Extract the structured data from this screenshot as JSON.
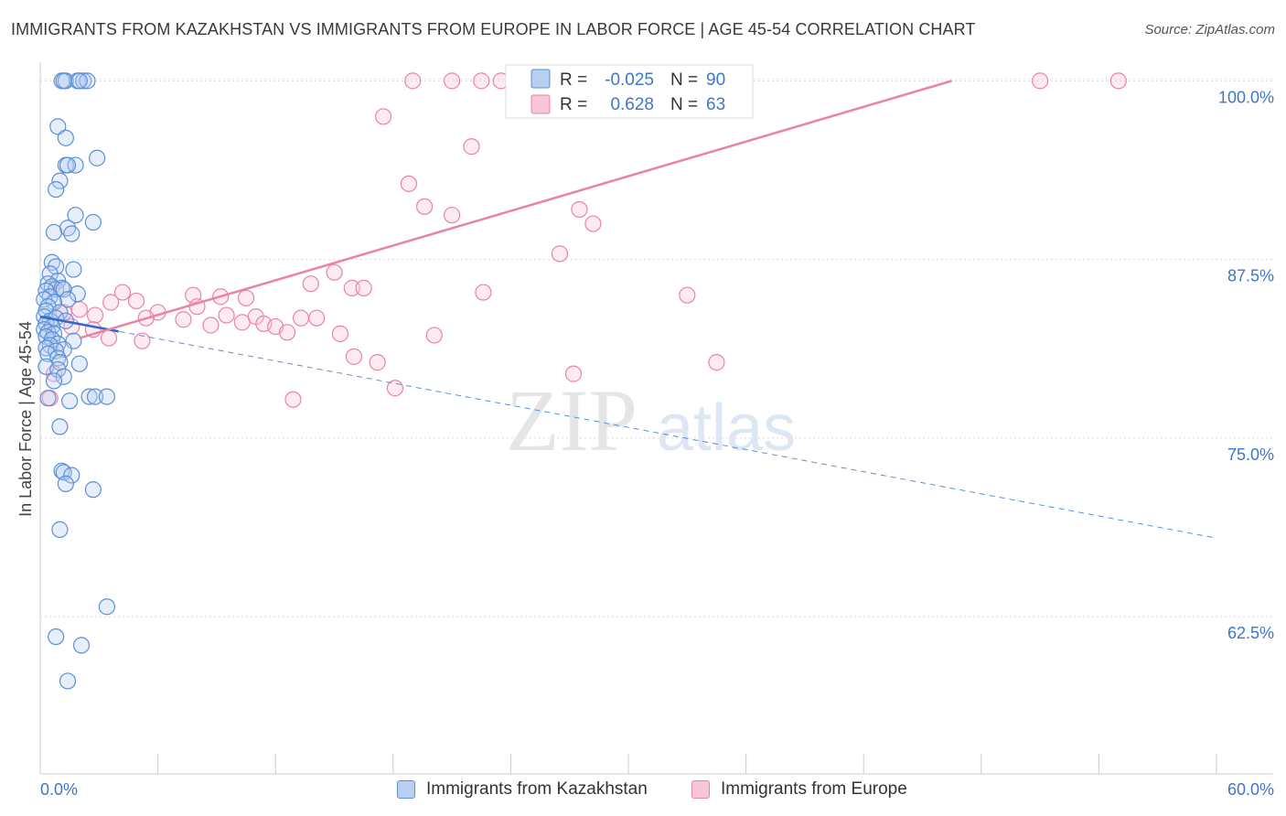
{
  "title": "IMMIGRANTS FROM KAZAKHSTAN VS IMMIGRANTS FROM EUROPE IN LABOR FORCE | AGE 45-54 CORRELATION CHART",
  "source": "Source: ZipAtlas.com",
  "watermark": {
    "zip": "ZIP",
    "atlas": "atlas"
  },
  "stats_legend": {
    "rows": [
      {
        "r_label": "R =",
        "r_value": "-0.025",
        "n_label": "N =",
        "n_value": "90"
      },
      {
        "r_label": "R =",
        "r_value": "0.628",
        "n_label": "N =",
        "n_value": "63"
      }
    ]
  },
  "chart_data": {
    "type": "scatter",
    "title": "IMMIGRANTS FROM KAZAKHSTAN VS IMMIGRANTS FROM EUROPE IN LABOR FORCE | AGE 45-54 CORRELATION CHART",
    "xlabel": "",
    "ylabel": "In Labor Force | Age 45-54",
    "xlim": [
      0,
      60
    ],
    "ylim": [
      51.5,
      100.6
    ],
    "x_tick_labels": [
      "0.0%",
      "60.0%"
    ],
    "y_ticks": [
      62.5,
      75.0,
      87.5,
      100.0
    ],
    "y_tick_labels": [
      "62.5%",
      "75.0%",
      "87.5%",
      "100.0%"
    ],
    "colors": {
      "blue": "#5b8fd6",
      "pink": "#e983a6",
      "axis_text": "#3f76c9"
    },
    "series": [
      {
        "name": "Immigrants from Kazakhstan",
        "color": "#5b8fd6",
        "R": -0.025,
        "N": 90,
        "trend": {
          "x": [
            0.0,
            60.0
          ],
          "y": [
            83.5,
            68.0
          ],
          "solid_to_x": 4.0
        },
        "points": [
          [
            1.1,
            100
          ],
          [
            1.3,
            100
          ],
          [
            1.9,
            100
          ],
          [
            2.2,
            100
          ],
          [
            2.4,
            100
          ],
          [
            2.0,
            100
          ],
          [
            1.2,
            100
          ],
          [
            0.9,
            96.8
          ],
          [
            1.3,
            96.0
          ],
          [
            2.9,
            94.6
          ],
          [
            1.3,
            94.1
          ],
          [
            1.8,
            94.1
          ],
          [
            1.4,
            94.1
          ],
          [
            1.0,
            93.0
          ],
          [
            0.8,
            92.4
          ],
          [
            1.8,
            90.6
          ],
          [
            2.7,
            90.1
          ],
          [
            1.4,
            89.7
          ],
          [
            0.7,
            89.4
          ],
          [
            1.6,
            89.3
          ],
          [
            0.6,
            87.3
          ],
          [
            0.8,
            87.0
          ],
          [
            1.7,
            86.8
          ],
          [
            0.5,
            86.5
          ],
          [
            0.9,
            86.0
          ],
          [
            0.4,
            85.8
          ],
          [
            0.6,
            85.6
          ],
          [
            0.8,
            85.4
          ],
          [
            1.1,
            85.5
          ],
          [
            1.2,
            85.4
          ],
          [
            0.3,
            85.3
          ],
          [
            1.9,
            85.1
          ],
          [
            0.5,
            84.9
          ],
          [
            1.4,
            84.7
          ],
          [
            0.2,
            84.7
          ],
          [
            0.7,
            84.5
          ],
          [
            0.4,
            84.2
          ],
          [
            0.3,
            83.9
          ],
          [
            1.0,
            83.8
          ],
          [
            0.2,
            83.5
          ],
          [
            0.5,
            83.2
          ],
          [
            0.8,
            83.4
          ],
          [
            1.3,
            83.2
          ],
          [
            0.3,
            83.0
          ],
          [
            0.6,
            82.8
          ],
          [
            0.2,
            82.6
          ],
          [
            0.4,
            82.4
          ],
          [
            0.7,
            82.3
          ],
          [
            0.3,
            82.1
          ],
          [
            0.6,
            81.9
          ],
          [
            1.7,
            81.8
          ],
          [
            0.9,
            81.6
          ],
          [
            0.5,
            81.5
          ],
          [
            0.3,
            81.3
          ],
          [
            1.2,
            81.2
          ],
          [
            0.8,
            81.1
          ],
          [
            0.4,
            80.9
          ],
          [
            0.9,
            80.6
          ],
          [
            1.0,
            80.3
          ],
          [
            2.0,
            80.2
          ],
          [
            0.3,
            80.0
          ],
          [
            0.9,
            79.8
          ],
          [
            1.2,
            79.3
          ],
          [
            0.7,
            79.0
          ],
          [
            2.5,
            77.9
          ],
          [
            2.8,
            77.9
          ],
          [
            3.4,
            77.9
          ],
          [
            0.4,
            77.8
          ],
          [
            1.5,
            77.6
          ],
          [
            1.0,
            75.8
          ],
          [
            1.1,
            72.7
          ],
          [
            1.2,
            72.6
          ],
          [
            1.6,
            72.4
          ],
          [
            1.3,
            71.8
          ],
          [
            2.7,
            71.4
          ],
          [
            1.0,
            68.6
          ],
          [
            3.4,
            63.2
          ],
          [
            0.8,
            61.1
          ],
          [
            2.1,
            60.5
          ],
          [
            1.4,
            58.0
          ]
        ]
      },
      {
        "name": "Immigrants from Europe",
        "color": "#e983a6",
        "R": 0.628,
        "N": 63,
        "trend": {
          "x": [
            2.0,
            46.5
          ],
          "y": [
            82.0,
            100.0
          ]
        },
        "points": [
          [
            19.0,
            100
          ],
          [
            21.0,
            100
          ],
          [
            22.5,
            100
          ],
          [
            23.5,
            100
          ],
          [
            24.5,
            100
          ],
          [
            27.0,
            100
          ],
          [
            31.0,
            100
          ],
          [
            33.0,
            100
          ],
          [
            35.0,
            100
          ],
          [
            51.0,
            100
          ],
          [
            55.0,
            100
          ],
          [
            17.5,
            97.5
          ],
          [
            22.0,
            95.4
          ],
          [
            18.8,
            92.8
          ],
          [
            19.6,
            91.2
          ],
          [
            21.0,
            90.6
          ],
          [
            27.5,
            91.0
          ],
          [
            28.2,
            90.0
          ],
          [
            26.5,
            87.9
          ],
          [
            15.0,
            86.6
          ],
          [
            13.8,
            85.8
          ],
          [
            15.9,
            85.5
          ],
          [
            16.5,
            85.5
          ],
          [
            22.6,
            85.2
          ],
          [
            33.0,
            85.0
          ],
          [
            4.2,
            85.2
          ],
          [
            7.8,
            85.0
          ],
          [
            9.2,
            84.9
          ],
          [
            10.5,
            84.8
          ],
          [
            4.9,
            84.6
          ],
          [
            3.6,
            84.5
          ],
          [
            8.0,
            84.2
          ],
          [
            2.0,
            84.0
          ],
          [
            1.2,
            83.8
          ],
          [
            6.0,
            83.8
          ],
          [
            2.8,
            83.6
          ],
          [
            9.5,
            83.6
          ],
          [
            11.0,
            83.5
          ],
          [
            5.4,
            83.4
          ],
          [
            7.3,
            83.3
          ],
          [
            13.3,
            83.4
          ],
          [
            14.1,
            83.4
          ],
          [
            10.3,
            83.1
          ],
          [
            11.4,
            83.0
          ],
          [
            8.7,
            82.9
          ],
          [
            1.6,
            82.8
          ],
          [
            12.0,
            82.8
          ],
          [
            2.7,
            82.6
          ],
          [
            12.6,
            82.4
          ],
          [
            15.3,
            82.3
          ],
          [
            20.1,
            82.2
          ],
          [
            3.5,
            82.0
          ],
          [
            5.2,
            81.8
          ],
          [
            16.0,
            80.7
          ],
          [
            17.2,
            80.3
          ],
          [
            34.5,
            80.3
          ],
          [
            27.2,
            79.5
          ],
          [
            18.1,
            78.5
          ],
          [
            12.9,
            77.7
          ],
          [
            0.5,
            77.8
          ],
          [
            0.7,
            79.5
          ]
        ]
      }
    ]
  },
  "bottom_legend": [
    {
      "label": "Immigrants from Kazakhstan",
      "fill": "#b8cff2",
      "border": "#5b8fd6"
    },
    {
      "label": "Immigrants from Europe",
      "fill": "#f8c6d6",
      "border": "#e983a6"
    }
  ]
}
